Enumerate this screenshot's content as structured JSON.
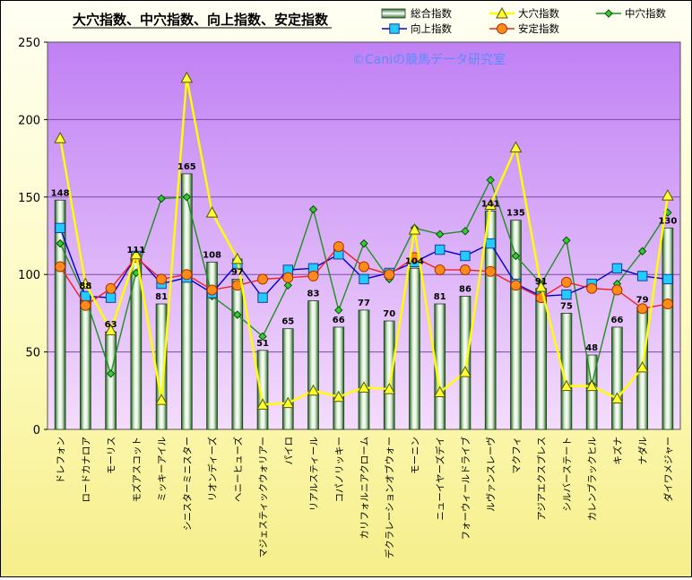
{
  "chart_data": {
    "type": "bar",
    "title": "大穴指数、中穴指数、向上指数、安定指数",
    "watermark": "©Caniの競馬データ研究室",
    "ylim": [
      0,
      250
    ],
    "yticks": [
      0,
      50,
      100,
      150,
      200,
      250
    ],
    "grid": true,
    "legend_position": "top-right",
    "categories": [
      "ドレフォン",
      "ロードカナロア",
      "モーリス",
      "モズアスコット",
      "ミッキーアイル",
      "シニスターミニスター",
      "リオンディーズ",
      "ヘニーヒューズ",
      "マジェスティックウォリアー",
      "パイロ",
      "リアルスティール",
      "コパノリッキー",
      "カリフォルニアクローム",
      "デクラレーションオブウォー",
      "モーニン",
      "ニューイヤーズデイ",
      "フォーウィールドライブ",
      "ルヴァンスレーヴ",
      "マクフィ",
      "アジアエクスプレス",
      "シルバーステート",
      "カレンブラックヒル",
      "キズナ",
      "ナダル",
      "ダイワメジャー"
    ],
    "series": [
      {
        "name": "総合指数",
        "type": "bar",
        "color": "#3a8a3a",
        "labels_shown": true,
        "values": [
          148,
          88,
          63,
          111,
          81,
          165,
          108,
          97,
          51,
          65,
          83,
          66,
          77,
          70,
          104,
          81,
          86,
          141,
          135,
          91,
          75,
          48,
          66,
          79,
          130
        ]
      },
      {
        "name": "大穴指数",
        "type": "line",
        "color": "#ffff00",
        "marker": "triangle",
        "values": [
          188,
          94,
          64,
          113,
          19,
          227,
          140,
          110,
          16,
          17,
          25,
          21,
          27,
          26,
          129,
          24,
          37,
          145,
          182,
          92,
          28,
          28,
          20,
          40,
          151
        ]
      },
      {
        "name": "中穴指数",
        "type": "line",
        "color": "#1e8f1e",
        "marker": "diamond",
        "values": [
          120,
          85,
          36,
          101,
          149,
          150,
          86,
          74,
          60,
          93,
          142,
          77,
          120,
          97,
          130,
          126,
          128,
          161,
          112,
          94,
          122,
          29,
          94,
          115,
          140
        ]
      },
      {
        "name": "向上指数",
        "type": "line",
        "color": "#0000cc",
        "marker": "square",
        "values": [
          130,
          86,
          85,
          112,
          94,
          98,
          88,
          107,
          85,
          103,
          104,
          113,
          97,
          101,
          108,
          116,
          112,
          120,
          94,
          86,
          87,
          94,
          104,
          99,
          97
        ]
      },
      {
        "name": "安定指数",
        "type": "line",
        "color": "#ee2222",
        "marker": "circle",
        "values": [
          105,
          80,
          91,
          111,
          97,
          100,
          90,
          93,
          97,
          98,
          99,
          118,
          105,
          100,
          111,
          103,
          103,
          102,
          93,
          85,
          95,
          91,
          90,
          78,
          81
        ]
      }
    ]
  }
}
